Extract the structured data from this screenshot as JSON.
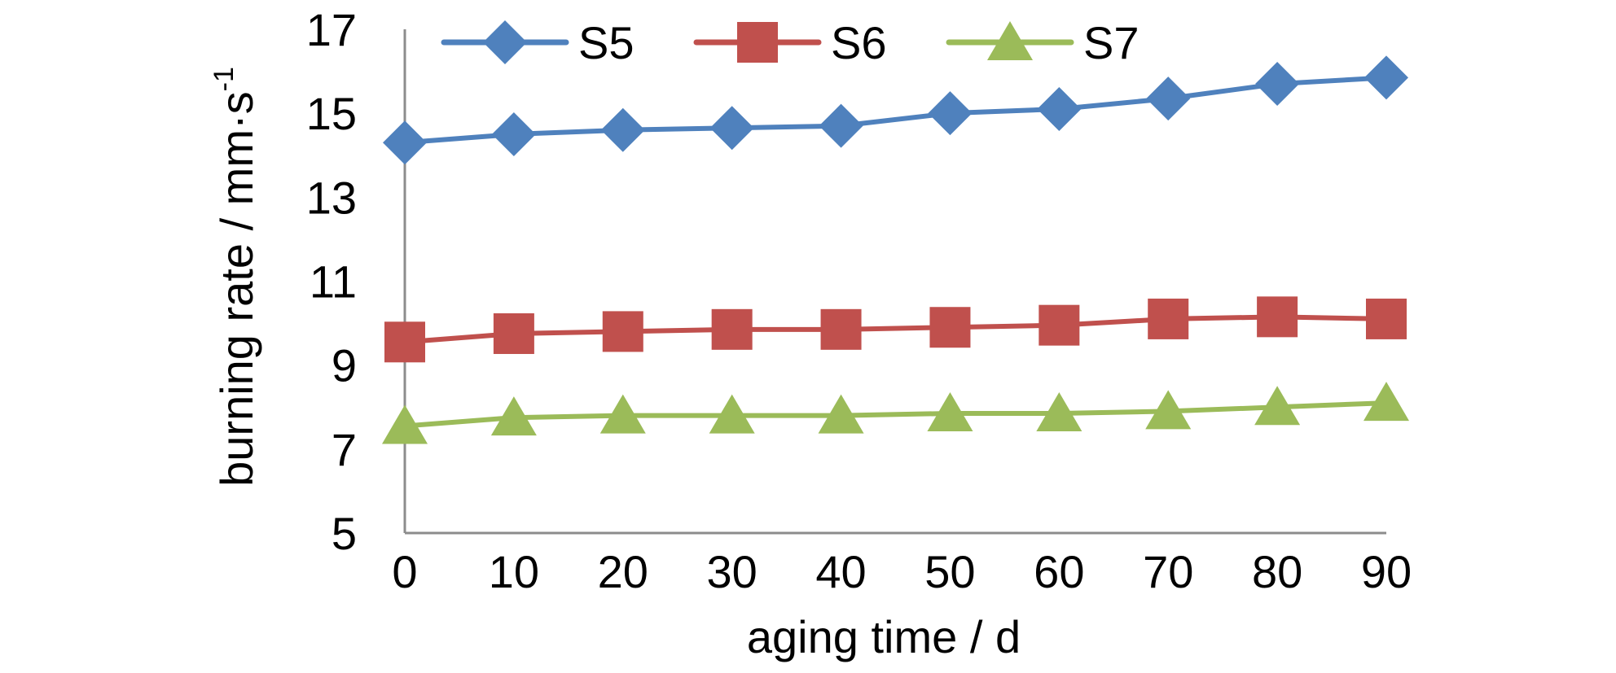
{
  "chart_data": {
    "type": "line",
    "x": [
      0,
      10,
      20,
      30,
      40,
      50,
      60,
      70,
      80,
      90
    ],
    "series": [
      {
        "name": "S5",
        "values": [
          14.3,
          14.5,
          14.6,
          14.65,
          14.7,
          15.0,
          15.1,
          15.35,
          15.7,
          15.85
        ],
        "color": "#4f81bd",
        "marker": "diamond"
      },
      {
        "name": "S6",
        "values": [
          9.55,
          9.75,
          9.8,
          9.85,
          9.85,
          9.9,
          9.95,
          10.1,
          10.15,
          10.1
        ],
        "color": "#c0504d",
        "marker": "square"
      },
      {
        "name": "S7",
        "values": [
          7.55,
          7.75,
          7.8,
          7.8,
          7.8,
          7.85,
          7.85,
          7.9,
          8.0,
          8.1
        ],
        "color": "#9bbb59",
        "marker": "triangle"
      }
    ],
    "xlabel": "aging time / d",
    "ylabel_main": "burning rate / mm·s",
    "ylabel_sup": "-1",
    "xlim": [
      0,
      90
    ],
    "ylim": [
      5,
      17
    ],
    "yticks": [
      5,
      7,
      9,
      11,
      13,
      15,
      17
    ],
    "xticks": [
      0,
      10,
      20,
      30,
      40,
      50,
      60,
      70,
      80,
      90
    ],
    "grid": false,
    "legend_position": "top"
  }
}
